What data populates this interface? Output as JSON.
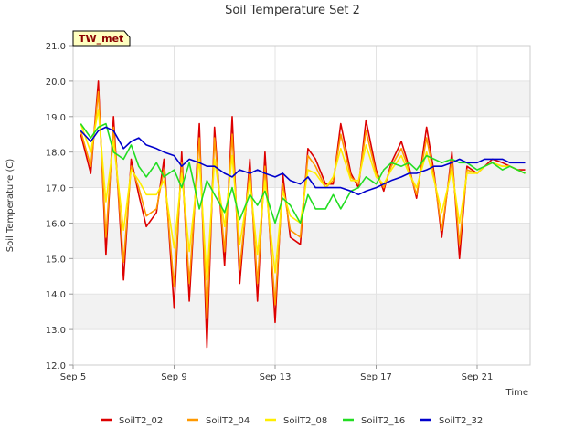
{
  "chart_data": {
    "type": "line",
    "title": "Soil Temperature Set 2",
    "xlabel": "Time",
    "ylabel": "Soil Temperature (C)",
    "badge": "TW_met",
    "x_start": "Sep 5",
    "x_ticks": [
      {
        "label": "Sep 5",
        "day": 5
      },
      {
        "label": "Sep 9",
        "day": 9
      },
      {
        "label": "Sep 13",
        "day": 13
      },
      {
        "label": "Sep 17",
        "day": 17
      },
      {
        "label": "Sep 21",
        "day": 21
      }
    ],
    "xlim": [
      5,
      23.1
    ],
    "ylim": [
      12.0,
      21.0
    ],
    "y_ticks": [
      "12.0",
      "13.0",
      "14.0",
      "15.0",
      "16.0",
      "17.0",
      "18.0",
      "19.0",
      "20.0",
      "21.0"
    ],
    "grid": true,
    "legend_position": "bottom",
    "series": [
      {
        "name": "SoilT2_02",
        "color": "#dd0000",
        "x": [
          5.3,
          5.7,
          6.0,
          6.3,
          6.6,
          7.0,
          7.3,
          7.6,
          7.9,
          8.3,
          8.6,
          9.0,
          9.3,
          9.6,
          10.0,
          10.3,
          10.6,
          11.0,
          11.3,
          11.6,
          12.0,
          12.3,
          12.6,
          13.0,
          13.3,
          13.6,
          14.0,
          14.3,
          14.6,
          15.0,
          15.3,
          15.6,
          16.0,
          16.3,
          16.6,
          17.0,
          17.3,
          17.6,
          18.0,
          18.3,
          18.6,
          19.0,
          19.3,
          19.6,
          20.0,
          20.3,
          20.6,
          21.0,
          21.3,
          21.6,
          22.0,
          22.3,
          22.6,
          22.9
        ],
        "y": [
          18.5,
          17.4,
          20.0,
          15.1,
          19.0,
          14.4,
          17.8,
          16.8,
          15.9,
          16.3,
          17.8,
          13.6,
          18.0,
          13.8,
          18.8,
          12.5,
          18.7,
          14.8,
          19.0,
          14.3,
          17.8,
          13.8,
          18.0,
          13.2,
          17.4,
          15.6,
          15.4,
          18.1,
          17.8,
          17.1,
          17.1,
          18.8,
          17.4,
          17.0,
          18.9,
          17.5,
          16.9,
          17.7,
          18.3,
          17.6,
          16.7,
          18.7,
          17.4,
          15.6,
          18.0,
          15.0,
          17.6,
          17.4,
          17.6,
          17.8,
          17.7,
          17.6,
          17.5,
          17.5
        ]
      },
      {
        "name": "SoilT2_04",
        "color": "#ff9900",
        "x": [
          5.3,
          5.7,
          6.0,
          6.3,
          6.6,
          7.0,
          7.3,
          7.6,
          7.9,
          8.3,
          8.6,
          9.0,
          9.3,
          9.6,
          10.0,
          10.3,
          10.6,
          11.0,
          11.3,
          11.6,
          12.0,
          12.3,
          12.6,
          13.0,
          13.3,
          13.6,
          14.0,
          14.3,
          14.6,
          15.0,
          15.3,
          15.6,
          16.0,
          16.3,
          16.6,
          17.0,
          17.3,
          17.6,
          18.0,
          18.3,
          18.6,
          19.0,
          19.3,
          19.6,
          20.0,
          20.3,
          20.6,
          21.0,
          21.3,
          21.6,
          22.0,
          22.3,
          22.6,
          22.9
        ],
        "y": [
          18.6,
          17.6,
          19.7,
          15.6,
          18.7,
          14.9,
          17.6,
          17.0,
          16.2,
          16.4,
          17.5,
          14.2,
          17.7,
          14.3,
          18.4,
          13.3,
          18.4,
          15.2,
          18.5,
          14.7,
          17.5,
          14.3,
          17.6,
          13.7,
          17.1,
          15.8,
          15.6,
          17.9,
          17.6,
          17.0,
          17.2,
          18.5,
          17.3,
          17.1,
          18.6,
          17.4,
          17.0,
          17.6,
          18.1,
          17.5,
          16.8,
          18.4,
          17.3,
          15.8,
          17.8,
          15.4,
          17.5,
          17.4,
          17.6,
          17.7,
          17.6,
          17.6,
          17.5,
          17.4
        ]
      },
      {
        "name": "SoilT2_08",
        "color": "#ffee00",
        "x": [
          5.3,
          5.7,
          6.0,
          6.3,
          6.6,
          7.0,
          7.3,
          7.6,
          7.9,
          8.3,
          8.6,
          9.0,
          9.3,
          9.6,
          10.0,
          10.3,
          10.6,
          11.0,
          11.3,
          11.6,
          12.0,
          12.3,
          12.6,
          13.0,
          13.3,
          13.6,
          14.0,
          14.3,
          14.6,
          15.0,
          15.3,
          15.6,
          16.0,
          16.3,
          16.6,
          17.0,
          17.3,
          17.6,
          18.0,
          18.3,
          18.6,
          19.0,
          19.3,
          19.6,
          20.0,
          20.3,
          20.6,
          21.0,
          21.3,
          21.6,
          22.0,
          22.3,
          22.6,
          22.9
        ],
        "y": [
          18.8,
          18.0,
          19.2,
          16.6,
          18.3,
          15.8,
          17.5,
          17.2,
          16.8,
          16.8,
          17.2,
          15.3,
          17.4,
          15.2,
          17.8,
          14.4,
          17.8,
          15.9,
          17.9,
          15.4,
          17.2,
          15.1,
          17.2,
          14.6,
          16.9,
          16.2,
          16.0,
          17.5,
          17.4,
          17.0,
          17.3,
          18.1,
          17.2,
          17.2,
          18.2,
          17.3,
          17.1,
          17.5,
          17.9,
          17.4,
          17.0,
          18.0,
          17.2,
          16.3,
          17.5,
          16.0,
          17.4,
          17.4,
          17.6,
          17.7,
          17.6,
          17.6,
          17.5,
          17.4
        ]
      },
      {
        "name": "SoilT2_16",
        "color": "#22dd22",
        "x": [
          5.3,
          5.7,
          6.0,
          6.3,
          6.6,
          7.0,
          7.3,
          7.6,
          7.9,
          8.3,
          8.6,
          9.0,
          9.3,
          9.6,
          10.0,
          10.3,
          10.6,
          11.0,
          11.3,
          11.6,
          12.0,
          12.3,
          12.6,
          13.0,
          13.3,
          13.6,
          14.0,
          14.3,
          14.6,
          15.0,
          15.3,
          15.6,
          16.0,
          16.3,
          16.6,
          17.0,
          17.3,
          17.6,
          18.0,
          18.3,
          18.6,
          19.0,
          19.3,
          19.6,
          20.0,
          20.3,
          20.6,
          21.0,
          21.3,
          21.6,
          22.0,
          22.3,
          22.6,
          22.9
        ],
        "y": [
          18.8,
          18.4,
          18.7,
          18.8,
          18.0,
          17.8,
          18.2,
          17.6,
          17.3,
          17.7,
          17.3,
          17.5,
          17.0,
          17.7,
          16.4,
          17.2,
          16.8,
          16.3,
          17.0,
          16.1,
          16.8,
          16.5,
          16.9,
          16.0,
          16.7,
          16.5,
          16.0,
          16.8,
          16.4,
          16.4,
          16.8,
          16.4,
          16.9,
          17.0,
          17.3,
          17.1,
          17.5,
          17.7,
          17.6,
          17.7,
          17.5,
          17.9,
          17.8,
          17.7,
          17.8,
          17.7,
          17.7,
          17.5,
          17.6,
          17.7,
          17.5,
          17.6,
          17.5,
          17.4
        ]
      },
      {
        "name": "SoilT2_32",
        "color": "#0000cc",
        "x": [
          5.3,
          5.7,
          6.0,
          6.3,
          6.6,
          7.0,
          7.3,
          7.6,
          7.9,
          8.3,
          8.6,
          9.0,
          9.3,
          9.6,
          10.0,
          10.3,
          10.6,
          11.0,
          11.3,
          11.6,
          12.0,
          12.3,
          12.6,
          13.0,
          13.3,
          13.6,
          14.0,
          14.3,
          14.6,
          15.0,
          15.3,
          15.6,
          16.0,
          16.3,
          16.6,
          17.0,
          17.3,
          17.6,
          18.0,
          18.3,
          18.6,
          19.0,
          19.3,
          19.6,
          20.0,
          20.3,
          20.6,
          21.0,
          21.3,
          21.6,
          22.0,
          22.3,
          22.6,
          22.9
        ],
        "y": [
          18.6,
          18.3,
          18.6,
          18.7,
          18.6,
          18.1,
          18.3,
          18.4,
          18.2,
          18.1,
          18.0,
          17.9,
          17.6,
          17.8,
          17.7,
          17.6,
          17.6,
          17.4,
          17.3,
          17.5,
          17.4,
          17.5,
          17.4,
          17.3,
          17.4,
          17.2,
          17.1,
          17.3,
          17.0,
          17.0,
          17.0,
          17.0,
          16.9,
          16.8,
          16.9,
          17.0,
          17.1,
          17.2,
          17.3,
          17.4,
          17.4,
          17.5,
          17.6,
          17.6,
          17.7,
          17.8,
          17.7,
          17.7,
          17.8,
          17.8,
          17.8,
          17.7,
          17.7,
          17.7
        ]
      }
    ]
  }
}
